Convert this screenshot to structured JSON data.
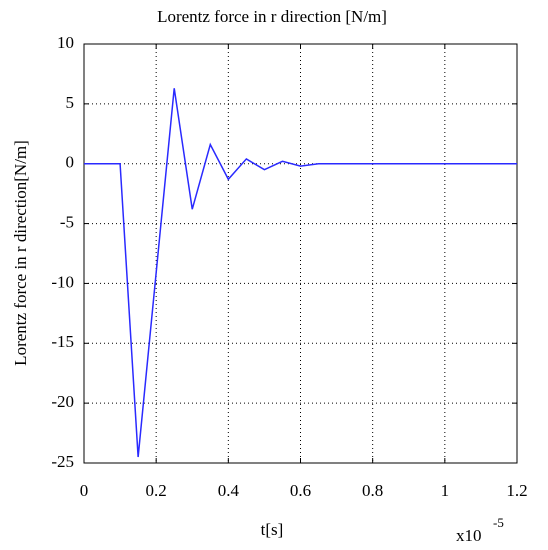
{
  "chart_data": {
    "type": "line",
    "title": "Lorentz force in r direction [N/m]",
    "x_label": "t[s]",
    "y_label": "Lorentz force in r direction[N/m]",
    "x_scale_label": "x10",
    "x_scale_exponent": "-5",
    "x": [
      0,
      0.1,
      0.15,
      0.25,
      0.3,
      0.35,
      0.4,
      0.45,
      0.5,
      0.55,
      0.6,
      0.65,
      1.2
    ],
    "series": [
      {
        "name": "Lorentz force",
        "color": "#2a2aff",
        "values": [
          0,
          0,
          -24.5,
          6.3,
          -3.8,
          1.6,
          -1.3,
          0.4,
          -0.5,
          0.2,
          -0.2,
          0,
          0
        ]
      }
    ],
    "xlim": [
      0,
      1.2
    ],
    "xticks": [
      0,
      0.2,
      0.4,
      0.6,
      0.8,
      1,
      1.2
    ],
    "ylim": [
      -25,
      10
    ],
    "yticks": [
      10,
      5,
      0,
      -5,
      -10,
      -15,
      -20,
      -25
    ],
    "grid": true
  }
}
